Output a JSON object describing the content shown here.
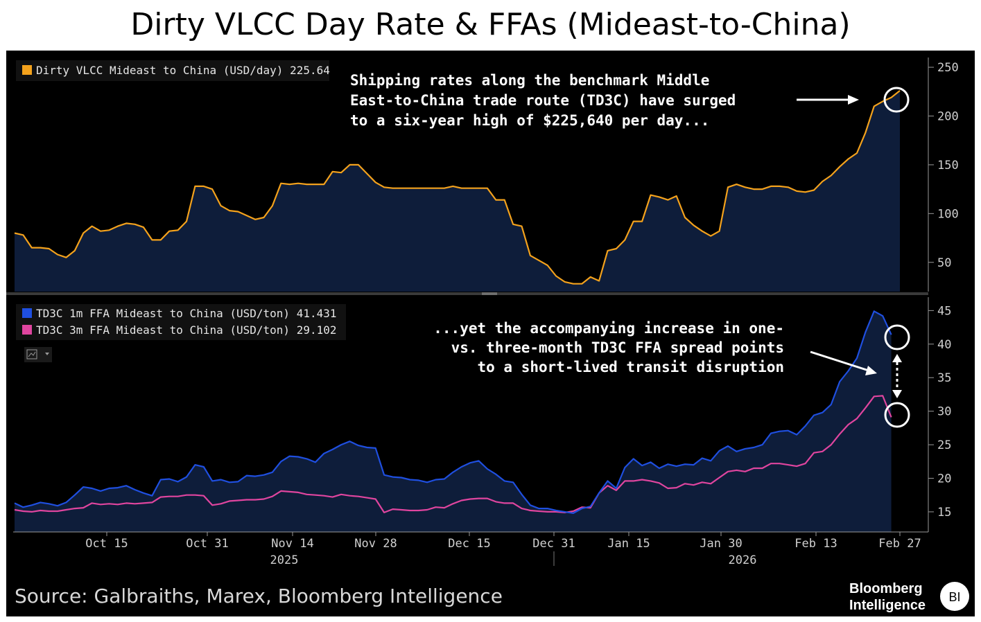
{
  "title": "Dirty VLCC Day Rate & FFAs (Mideast-to-China)",
  "source": "Source: Galbraiths, Marex, Bloomberg Intelligence",
  "brand": {
    "line1": "Bloomberg",
    "line2": "Intelligence",
    "badge": "BI"
  },
  "colors": {
    "background": "#000000",
    "area": "#0e1d3a",
    "orange": "#f4a21c",
    "blue": "#1f4fe0",
    "pink": "#e0459f"
  },
  "icons": {
    "chart_type_selector": "line-chart-icon"
  },
  "chart_data": [
    {
      "type": "area",
      "ylim": [
        20,
        260
      ],
      "yticks": [
        50,
        100,
        150,
        200,
        250
      ],
      "xtick_labels": [
        "Oct 15",
        "Oct 31",
        "Nov 14",
        "Nov 28",
        "Dec 15",
        "Dec 31",
        "Jan 15",
        "Jan 30",
        "Feb 13",
        "Feb 27"
      ],
      "year_labels": [
        "2025",
        "2026"
      ],
      "legend": [
        {
          "name": "Dirty VLCC Mideast to China (USD/day)",
          "last": "225.64"
        }
      ],
      "annotation": [
        "Shipping rates along the benchmark Middle",
        "East-to-China trade route (TD3C) have surged",
        "to a six-year high of $225,640 per day..."
      ],
      "series": [
        {
          "name": "Dirty VLCC Mideast to China (USD/day)",
          "values": [
            80,
            78,
            65,
            65,
            64,
            58,
            55,
            62,
            80,
            87,
            82,
            83,
            87,
            90,
            89,
            86,
            73,
            73,
            82,
            83,
            92,
            128,
            128,
            125,
            108,
            103,
            102,
            98,
            94,
            96,
            108,
            131,
            130,
            131,
            130,
            130,
            130,
            143,
            142,
            150,
            150,
            141,
            132,
            127,
            126,
            126,
            126,
            126,
            126,
            126,
            126,
            128,
            126,
            126,
            126,
            126,
            114,
            114,
            89,
            87,
            57,
            52,
            47,
            36,
            30,
            28,
            28,
            35,
            31,
            62,
            64,
            73,
            92,
            92,
            119,
            117,
            114,
            118,
            96,
            88,
            82,
            77,
            82,
            127,
            130,
            127,
            125,
            125,
            128,
            128,
            127,
            123,
            122,
            124,
            133,
            139,
            148,
            156,
            162,
            183,
            210,
            215,
            219,
            226
          ]
        }
      ]
    },
    {
      "type": "area",
      "ylim": [
        12,
        47
      ],
      "yticks": [
        15,
        20,
        25,
        30,
        35,
        40,
        45
      ],
      "xtick_labels": [
        "Oct 15",
        "Oct 31",
        "Nov 14",
        "Nov 28",
        "Dec 15",
        "Dec 31",
        "Jan 15",
        "Jan 30",
        "Feb 13",
        "Feb 27"
      ],
      "year_labels": [
        "2025",
        "2026"
      ],
      "legend": [
        {
          "name": "TD3C 1m FFA Mideast to China (USD/ton)",
          "last": "41.431"
        },
        {
          "name": "TD3C 3m FFA Mideast to China (USD/ton)",
          "last": "29.102"
        }
      ],
      "annotation": [
        "...yet the accompanying increase in one-",
        "vs. three-month TD3C FFA spread points",
        "to a short-lived transit disruption"
      ],
      "series": [
        {
          "name": "TD3C 1m FFA Mideast to China (USD/ton)",
          "values": [
            16.3,
            15.7,
            16.0,
            16.4,
            16.2,
            15.9,
            16.4,
            17.5,
            18.7,
            18.5,
            18.1,
            18.5,
            18.6,
            18.9,
            18.3,
            17.8,
            17.4,
            19.8,
            19.9,
            19.5,
            20.2,
            22.0,
            21.7,
            19.6,
            19.8,
            19.4,
            19.5,
            20.4,
            20.3,
            20.5,
            20.9,
            22.5,
            23.3,
            23.2,
            22.9,
            22.4,
            23.7,
            24.3,
            25.0,
            25.5,
            24.9,
            24.6,
            24.5,
            20.5,
            20.2,
            20.1,
            19.8,
            19.7,
            19.4,
            19.8,
            19.9,
            20.9,
            21.7,
            22.3,
            22.6,
            21.4,
            20.6,
            19.6,
            19.4,
            17.6,
            16.0,
            15.5,
            15.5,
            15.2,
            15.0,
            14.8,
            15.5,
            15.8,
            17.8,
            19.6,
            18.5,
            21.6,
            22.9,
            21.9,
            22.4,
            21.5,
            22.1,
            21.8,
            22.1,
            22.0,
            23.0,
            22.6,
            24.1,
            24.8,
            24.0,
            24.4,
            24.6,
            25.0,
            26.7,
            27.0,
            27.1,
            26.5,
            27.8,
            29.4,
            29.8,
            31.0,
            34.4,
            36.0,
            37.9,
            41.8,
            44.9,
            44.2,
            41.4
          ]
        },
        {
          "name": "TD3C 3m FFA Mideast to China (USD/ton)",
          "values": [
            15.3,
            15.1,
            15.0,
            15.2,
            15.1,
            15.1,
            15.3,
            15.5,
            15.6,
            16.3,
            16.1,
            16.2,
            16.1,
            16.3,
            16.2,
            16.3,
            16.4,
            17.2,
            17.3,
            17.3,
            17.5,
            17.5,
            17.4,
            16.0,
            16.2,
            16.6,
            16.7,
            16.8,
            16.8,
            16.9,
            17.3,
            18.1,
            18.0,
            17.9,
            17.6,
            17.5,
            17.4,
            17.2,
            17.6,
            17.4,
            17.3,
            17.1,
            16.9,
            14.9,
            15.4,
            15.3,
            15.2,
            15.2,
            15.3,
            15.7,
            15.6,
            16.2,
            16.7,
            16.9,
            17.0,
            17.0,
            16.5,
            16.3,
            16.3,
            15.5,
            15.2,
            15.1,
            15.0,
            15.0,
            14.9,
            15.1,
            15.7,
            15.6,
            17.8,
            18.9,
            18.2,
            19.6,
            19.6,
            19.8,
            19.6,
            19.3,
            18.5,
            18.6,
            19.2,
            19.0,
            19.4,
            19.2,
            20.1,
            21.0,
            21.2,
            21.0,
            21.5,
            21.5,
            22.2,
            22.2,
            22.0,
            21.8,
            22.2,
            23.8,
            24.0,
            25.0,
            26.6,
            28.0,
            28.9,
            30.5,
            32.2,
            32.3,
            29.1
          ]
        }
      ]
    }
  ]
}
